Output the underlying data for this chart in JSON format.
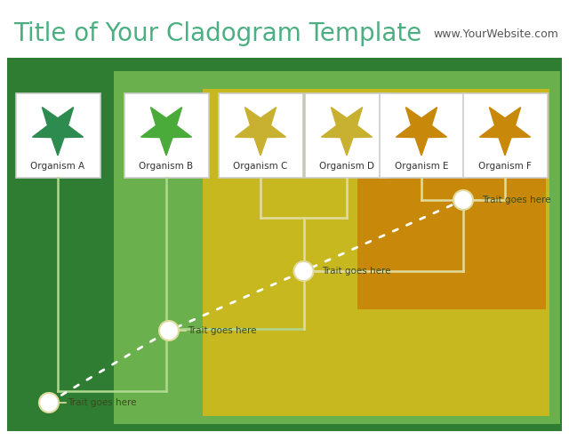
{
  "title": "Title of Your Cladogram Template",
  "website": "www.YourWebsite.com",
  "bg_color": "#ffffff",
  "outer_bg_color": "#2e7d32",
  "mid_bg_color": "#6ab04c",
  "inner_bg_color": "#c8b820",
  "orange_bg_color": "#c8890a",
  "title_color": "#4caf82",
  "website_color": "#555555",
  "organisms": [
    "Organism A",
    "Organism B",
    "Organism C",
    "Organism D",
    "Organism E",
    "Organism F"
  ],
  "star_colors_A": "#2e8b50",
  "star_colors_B": "#4aaa3a",
  "star_colors_CD": "#c8b030",
  "star_colors_EF": "#c8880a",
  "line_color_tree": "#e0dca0",
  "line_color_ab": "#c0dca0",
  "dot_color": "#ffffff",
  "trait_labels": [
    "Trait goes here",
    "Trait goes here",
    "Trait goes here",
    "Trait goes here"
  ],
  "trait_label_color": "#3a4a20"
}
